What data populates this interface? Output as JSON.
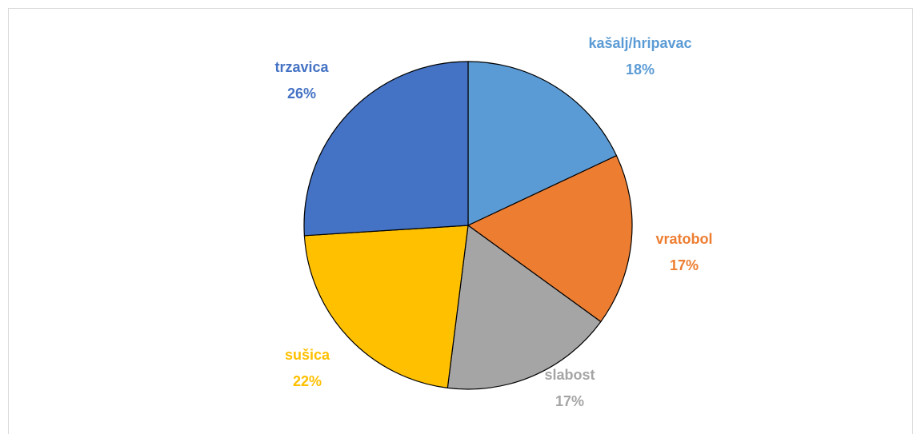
{
  "chart_data": {
    "type": "pie",
    "categories": [
      "kašalj/hripavac",
      "vratobol",
      "slabost",
      "sušica",
      "trzavica"
    ],
    "values": [
      18,
      17,
      17,
      22,
      26
    ],
    "value_labels": [
      "18%",
      "17%",
      "17%",
      "22%",
      "26%"
    ],
    "colors": [
      "#5b9bd5",
      "#ed7d31",
      "#a5a5a5",
      "#ffc000",
      "#4472c4"
    ]
  }
}
